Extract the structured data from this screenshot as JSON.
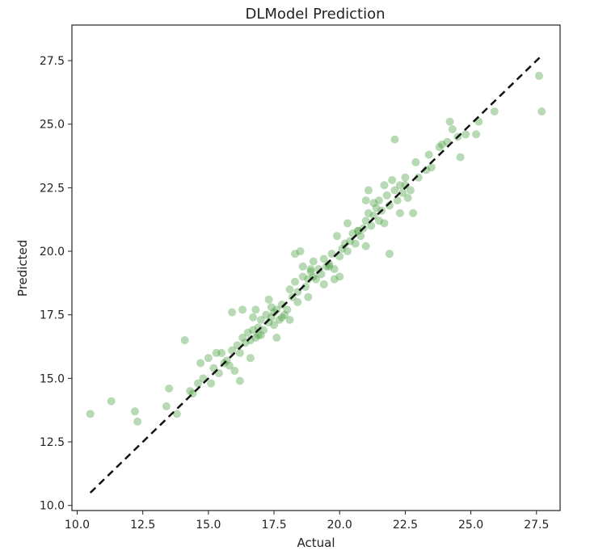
{
  "chart_data": {
    "type": "scatter",
    "title": "DLModel Prediction",
    "xlabel": "Actual",
    "ylabel": "Predicted",
    "xlim": [
      9.8,
      28.4
    ],
    "ylim": [
      9.8,
      28.9
    ],
    "xticks": [
      10.0,
      12.5,
      15.0,
      17.5,
      20.0,
      22.5,
      25.0,
      27.5
    ],
    "yticks": [
      10.0,
      12.5,
      15.0,
      17.5,
      20.0,
      22.5,
      25.0,
      27.5
    ],
    "xtick_labels": [
      "10.0",
      "12.5",
      "15.0",
      "17.5",
      "20.0",
      "22.5",
      "25.0",
      "27.5"
    ],
    "ytick_labels": [
      "10.0",
      "12.5",
      "15.0",
      "17.5",
      "20.0",
      "22.5",
      "25.0",
      "27.5"
    ],
    "grid": false,
    "point_color": "#4aa042",
    "point_opacity": 0.4,
    "reference_line": {
      "x": [
        10.5,
        27.7
      ],
      "y": [
        10.5,
        27.7
      ],
      "style": "dashed",
      "color": "#111111"
    },
    "points": [
      [
        10.5,
        13.6
      ],
      [
        11.3,
        14.1
      ],
      [
        12.2,
        13.7
      ],
      [
        12.3,
        13.3
      ],
      [
        13.4,
        13.9
      ],
      [
        13.5,
        14.6
      ],
      [
        13.8,
        13.6
      ],
      [
        14.1,
        16.5
      ],
      [
        14.3,
        14.5
      ],
      [
        14.4,
        14.4
      ],
      [
        14.6,
        14.8
      ],
      [
        14.7,
        15.6
      ],
      [
        14.8,
        15.0
      ],
      [
        15.0,
        15.8
      ],
      [
        15.1,
        14.8
      ],
      [
        15.2,
        15.4
      ],
      [
        15.3,
        16.0
      ],
      [
        15.4,
        15.2
      ],
      [
        15.5,
        16.0
      ],
      [
        15.6,
        15.6
      ],
      [
        15.7,
        15.7
      ],
      [
        15.8,
        15.5
      ],
      [
        15.9,
        16.1
      ],
      [
        15.9,
        17.6
      ],
      [
        16.0,
        15.3
      ],
      [
        16.1,
        16.3
      ],
      [
        16.2,
        16.0
      ],
      [
        16.2,
        14.9
      ],
      [
        16.3,
        16.6
      ],
      [
        16.3,
        17.7
      ],
      [
        16.4,
        16.4
      ],
      [
        16.5,
        16.8
      ],
      [
        16.6,
        16.5
      ],
      [
        16.6,
        15.8
      ],
      [
        16.7,
        16.9
      ],
      [
        16.7,
        17.4
      ],
      [
        16.8,
        17.7
      ],
      [
        16.8,
        16.6
      ],
      [
        16.9,
        17.0
      ],
      [
        17.0,
        17.3
      ],
      [
        17.0,
        16.7
      ],
      [
        17.1,
        16.9
      ],
      [
        17.2,
        17.5
      ],
      [
        17.3,
        18.1
      ],
      [
        17.3,
        17.2
      ],
      [
        17.4,
        17.4
      ],
      [
        17.4,
        17.8
      ],
      [
        17.5,
        17.1
      ],
      [
        17.5,
        17.6
      ],
      [
        17.6,
        16.6
      ],
      [
        17.6,
        17.7
      ],
      [
        17.7,
        17.3
      ],
      [
        17.8,
        17.9
      ],
      [
        17.9,
        17.5
      ],
      [
        18.0,
        17.7
      ],
      [
        18.1,
        17.3
      ],
      [
        18.1,
        18.5
      ],
      [
        18.2,
        18.2
      ],
      [
        18.3,
        18.8
      ],
      [
        18.3,
        19.9
      ],
      [
        18.4,
        18.0
      ],
      [
        18.4,
        18.4
      ],
      [
        18.5,
        20.0
      ],
      [
        18.6,
        19.0
      ],
      [
        18.6,
        19.4
      ],
      [
        18.7,
        18.6
      ],
      [
        18.8,
        18.9
      ],
      [
        18.8,
        18.2
      ],
      [
        18.9,
        19.2
      ],
      [
        19.0,
        19.6
      ],
      [
        19.0,
        19.0
      ],
      [
        19.1,
        18.9
      ],
      [
        19.2,
        19.3
      ],
      [
        19.3,
        19.1
      ],
      [
        19.4,
        18.7
      ],
      [
        19.4,
        19.7
      ],
      [
        19.5,
        19.4
      ],
      [
        19.6,
        19.5
      ],
      [
        19.7,
        19.9
      ],
      [
        19.8,
        19.3
      ],
      [
        19.8,
        18.9
      ],
      [
        19.9,
        20.6
      ],
      [
        20.0,
        19.8
      ],
      [
        20.0,
        19.0
      ],
      [
        20.1,
        20.1
      ],
      [
        20.2,
        20.3
      ],
      [
        20.3,
        21.1
      ],
      [
        20.3,
        20.0
      ],
      [
        20.4,
        20.4
      ],
      [
        20.5,
        20.7
      ],
      [
        20.6,
        20.3
      ],
      [
        20.7,
        20.8
      ],
      [
        20.8,
        20.6
      ],
      [
        20.9,
        20.9
      ],
      [
        21.0,
        20.2
      ],
      [
        21.0,
        21.2
      ],
      [
        21.1,
        21.5
      ],
      [
        21.1,
        22.4
      ],
      [
        21.2,
        21.0
      ],
      [
        21.3,
        21.9
      ],
      [
        21.3,
        21.4
      ],
      [
        21.4,
        21.7
      ],
      [
        21.5,
        21.2
      ],
      [
        21.5,
        22.0
      ],
      [
        21.6,
        21.6
      ],
      [
        21.7,
        22.6
      ],
      [
        21.7,
        21.1
      ],
      [
        21.8,
        22.2
      ],
      [
        21.9,
        21.8
      ],
      [
        21.9,
        19.9
      ],
      [
        22.0,
        22.8
      ],
      [
        22.1,
        24.4
      ],
      [
        22.1,
        22.4
      ],
      [
        22.2,
        22.0
      ],
      [
        22.3,
        21.5
      ],
      [
        22.3,
        22.6
      ],
      [
        22.4,
        22.3
      ],
      [
        22.5,
        22.9
      ],
      [
        22.6,
        22.1
      ],
      [
        22.7,
        22.4
      ],
      [
        22.8,
        21.5
      ],
      [
        22.9,
        23.5
      ],
      [
        23.0,
        22.9
      ],
      [
        23.3,
        23.2
      ],
      [
        23.4,
        23.8
      ],
      [
        23.5,
        23.3
      ],
      [
        23.8,
        24.1
      ],
      [
        24.1,
        24.3
      ],
      [
        24.2,
        25.1
      ],
      [
        24.3,
        24.8
      ],
      [
        24.5,
        24.5
      ],
      [
        24.6,
        23.7
      ],
      [
        24.8,
        24.6
      ],
      [
        25.2,
        24.6
      ],
      [
        25.3,
        25.1
      ],
      [
        25.9,
        25.5
      ],
      [
        27.6,
        26.9
      ],
      [
        27.7,
        25.5
      ],
      [
        22.5,
        22.6
      ],
      [
        21.0,
        22.0
      ],
      [
        19.6,
        19.4
      ],
      [
        18.9,
        19.3
      ],
      [
        17.8,
        17.4
      ],
      [
        16.9,
        16.7
      ],
      [
        20.7,
        20.8
      ],
      [
        23.9,
        24.2
      ]
    ]
  }
}
